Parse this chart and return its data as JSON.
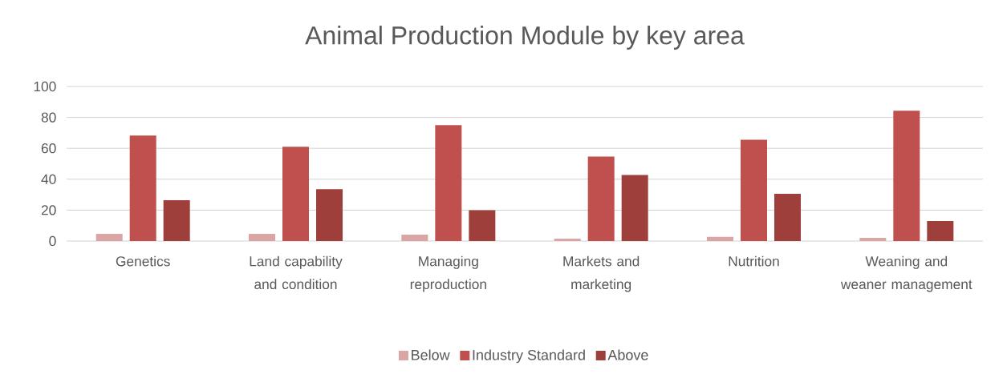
{
  "chart_data": {
    "type": "bar",
    "title": "Animal Production Module by key area",
    "categories": [
      "Genetics",
      "Land capability and condition",
      "Managing reproduction",
      "Markets and marketing",
      "Nutrition",
      "Weaning and weaner management"
    ],
    "series": [
      {
        "name": "Below",
        "color": "#d9a5a5",
        "values": [
          4.6,
          4.6,
          4.2,
          1.5,
          2.7,
          2.1
        ]
      },
      {
        "name": "Industry Standard",
        "color": "#c0504d",
        "values": [
          68.3,
          61,
          75,
          54.7,
          65.6,
          84.3
        ]
      },
      {
        "name": "Above",
        "color": "#9e3f3c",
        "values": [
          26.4,
          33.5,
          20,
          42.8,
          30.6,
          13
        ]
      }
    ],
    "ylim": [
      0,
      100
    ],
    "yticks": [
      0,
      20,
      40,
      60,
      80,
      100
    ],
    "grid": "y",
    "legend": "bottom"
  }
}
